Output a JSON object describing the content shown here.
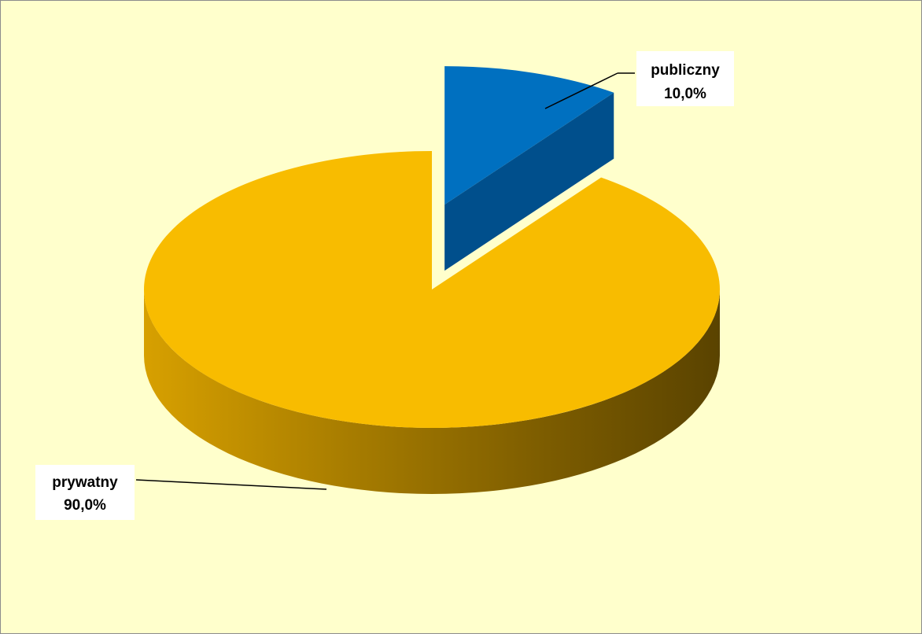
{
  "chart_data": {
    "type": "pie",
    "style": "3d-exploded",
    "title": "",
    "slices": [
      {
        "name": "publiczny",
        "value": 10.0,
        "label_value": "10,0%",
        "color": "#0070c0",
        "exploded": true
      },
      {
        "name": "prywatny",
        "value": 90.0,
        "label_value": "90,0%",
        "color": "#f8bc00",
        "exploded": false
      }
    ],
    "background": "#ffffcc",
    "legend": "none"
  }
}
